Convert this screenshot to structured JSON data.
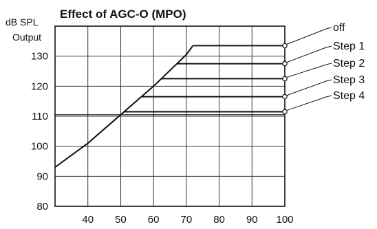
{
  "chart_data": {
    "type": "line",
    "title": "Effect of AGC-O (MPO)",
    "ylabel": "Output",
    "yunit": "dB SPL",
    "xlabel": "",
    "xlim": [
      30,
      100
    ],
    "ylim": [
      80,
      140
    ],
    "xticks": [
      40,
      50,
      60,
      70,
      80,
      90,
      100
    ],
    "yticks": [
      80,
      90,
      100,
      110,
      120,
      130
    ],
    "grid": true,
    "legend_position": "right",
    "base_curve": {
      "x": [
        30,
        40,
        50,
        60,
        70,
        72
      ],
      "y": [
        93,
        101,
        110.5,
        120,
        130.5,
        133.5
      ]
    },
    "series": [
      {
        "name": "off",
        "limit": 133.5,
        "x": [
          30,
          100
        ]
      },
      {
        "name": "Step 1",
        "limit": 127.5,
        "x": [
          30,
          100
        ]
      },
      {
        "name": "Step 2",
        "limit": 122.5,
        "x": [
          30,
          100
        ]
      },
      {
        "name": "Step 3",
        "limit": 116.5,
        "x": [
          30,
          100
        ]
      },
      {
        "name": "Step 4",
        "limit": 111.5,
        "x": [
          30,
          100
        ]
      }
    ],
    "reference_line": {
      "y": 110.5
    }
  }
}
